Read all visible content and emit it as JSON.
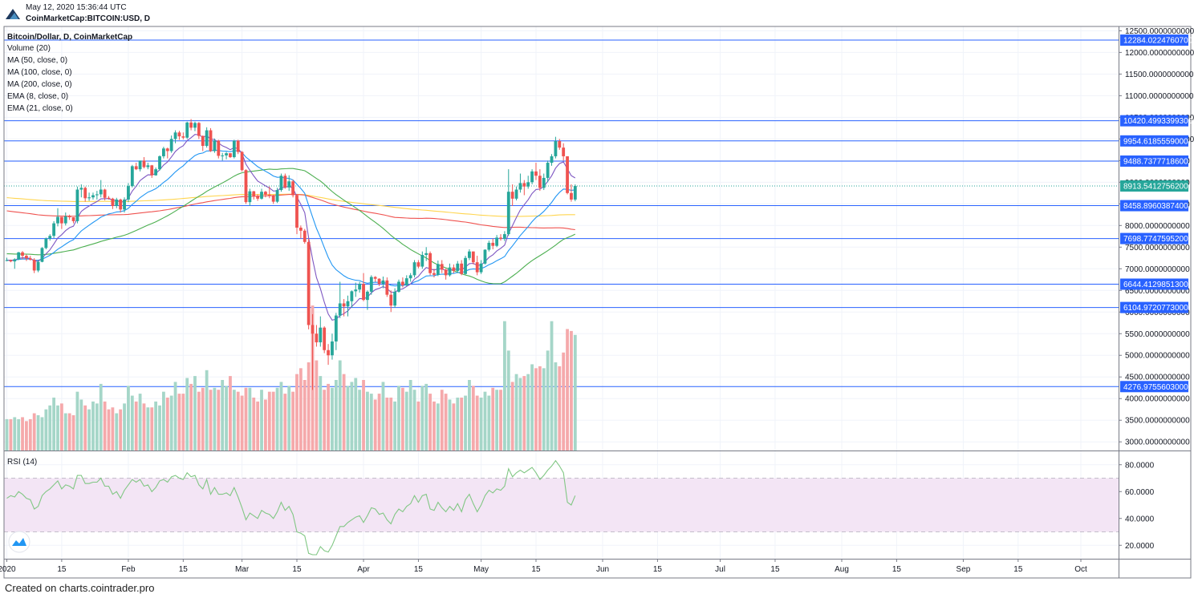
{
  "header": {
    "date": "May 12, 2020 15:36:44 UTC",
    "symbol": "CoinMarketCap:BITCOIN:USD, D"
  },
  "footer": {
    "text": "Created on charts.cointrader.pro"
  },
  "legend": {
    "title": "Bitcoin/Dollar, D, CoinMarketCap",
    "volume": "Volume (20)",
    "indicators": [
      "MA (50, close, 0)",
      "MA (100, close, 0)",
      "MA (200, close, 0)",
      "EMA (8, close, 0)",
      "EMA (21, close, 0)"
    ]
  },
  "rsi_label": "RSI (14)",
  "colors": {
    "up": "#26a69a",
    "down": "#ef5350",
    "up_vol": "#a5d6c8",
    "down_vol": "#f5a9ab",
    "level_line": "#2962ff",
    "last_price": "#26a69a",
    "ma50": "#4caf50",
    "ma100": "#ef5350",
    "ma200": "#ffd54f",
    "ema8": "#7e57c2",
    "ema21": "#2196f3",
    "rsi": "#81c784",
    "rsi_band": "#f3e5f5"
  },
  "chart_data": {
    "type": "candlestick",
    "x_ticks": [
      "2020",
      "15",
      "Feb",
      "15",
      "Mar",
      "15",
      "Apr",
      "15",
      "May",
      "15",
      "Jun",
      "15",
      "Jul",
      "15",
      "Aug",
      "15",
      "Sep",
      "15",
      "Oct"
    ],
    "x_tick_days": [
      0,
      14,
      31,
      45,
      60,
      74,
      91,
      105,
      121,
      135,
      152,
      166,
      182,
      196,
      213,
      227,
      244,
      258,
      274
    ],
    "price_axis": {
      "range": [
        2800,
        12600
      ],
      "ticks": [
        3000,
        3500,
        4000,
        4500,
        5000,
        5500,
        6000,
        6500,
        7000,
        7500,
        8000,
        8500,
        9000,
        9500,
        10000,
        10500,
        11000,
        11500,
        12000,
        12500
      ],
      "tick_format": "0000000000 decimals"
    },
    "level_lines": [
      "12284.0224760700",
      "10420.4993399300",
      "9954.6185559000",
      "9488.7377718600",
      "8458.8960387400",
      "7698.7747595200",
      "6644.4129851300",
      "6104.9720773000",
      "4276.9755603000"
    ],
    "last_price": "8913.5412756200",
    "candles": [
      [
        7195,
        7255,
        7175,
        7200
      ],
      [
        7200,
        7212,
        7150,
        7170
      ],
      [
        7170,
        7242,
        7000,
        7220
      ],
      [
        7220,
        7390,
        7200,
        7380
      ],
      [
        7380,
        7410,
        7220,
        7300
      ],
      [
        7300,
        7330,
        7180,
        7240
      ],
      [
        7240,
        7298,
        7190,
        7210
      ],
      [
        7210,
        7245,
        6900,
        6960
      ],
      [
        6960,
        7200,
        6920,
        7160
      ],
      [
        7160,
        7500,
        7150,
        7480
      ],
      [
        7480,
        7720,
        7450,
        7700
      ],
      [
        7700,
        7800,
        7650,
        7760
      ],
      [
        7760,
        8100,
        7710,
        8050
      ],
      [
        8050,
        8400,
        7980,
        8200
      ],
      [
        8200,
        8200,
        7920,
        8050
      ],
      [
        8050,
        8300,
        8000,
        8210
      ],
      [
        8210,
        8250,
        8130,
        8190
      ],
      [
        8190,
        8190,
        8050,
        8100
      ],
      [
        8100,
        8900,
        8050,
        8830
      ],
      [
        8830,
        8950,
        8650,
        8870
      ],
      [
        8870,
        8900,
        8550,
        8630
      ],
      [
        8630,
        8760,
        8570,
        8650
      ],
      [
        8650,
        8760,
        8600,
        8700
      ],
      [
        8700,
        8800,
        8600,
        8720
      ],
      [
        8720,
        9050,
        8650,
        8830
      ],
      [
        8830,
        8850,
        8580,
        8640
      ],
      [
        8640,
        8680,
        8600,
        8620
      ],
      [
        8620,
        8640,
        8380,
        8450
      ],
      [
        8450,
        8640,
        8400,
        8600
      ],
      [
        8600,
        8620,
        8300,
        8370
      ],
      [
        8370,
        8650,
        8300,
        8600
      ],
      [
        8600,
        8980,
        8540,
        8910
      ],
      [
        8910,
        9400,
        8880,
        9370
      ],
      [
        9370,
        9450,
        9280,
        9300
      ],
      [
        9300,
        9500,
        9250,
        9500
      ],
      [
        9500,
        9580,
        9320,
        9350
      ],
      [
        9350,
        9450,
        9300,
        9390
      ],
      [
        9390,
        9400,
        9100,
        9160
      ],
      [
        9160,
        9340,
        9150,
        9300
      ],
      [
        9300,
        9620,
        9270,
        9600
      ],
      [
        9600,
        9820,
        9550,
        9780
      ],
      [
        9780,
        9800,
        9550,
        9720
      ],
      [
        9720,
        10080,
        9680,
        10000
      ],
      [
        10000,
        10200,
        9900,
        10150
      ],
      [
        10150,
        10190,
        9980,
        10060
      ],
      [
        10060,
        10150,
        9990,
        10030
      ],
      [
        10030,
        10400,
        10000,
        10380
      ],
      [
        10380,
        10460,
        10200,
        10260
      ],
      [
        10260,
        10400,
        10180,
        10370
      ],
      [
        10370,
        10390,
        10000,
        10070
      ],
      [
        10070,
        10080,
        9720,
        9840
      ],
      [
        9840,
        10270,
        9800,
        10200
      ],
      [
        10200,
        10250,
        9700,
        9720
      ],
      [
        9720,
        10010,
        9680,
        9960
      ],
      [
        9960,
        9980,
        9550,
        9610
      ],
      [
        9610,
        9680,
        9500,
        9620
      ],
      [
        9620,
        9700,
        9530,
        9670
      ],
      [
        9670,
        9670,
        9560,
        9580
      ],
      [
        9580,
        9980,
        9550,
        9960
      ],
      [
        9960,
        9980,
        9650,
        9700
      ],
      [
        9700,
        9720,
        9250,
        9280
      ],
      [
        9280,
        9300,
        8500,
        8540
      ],
      [
        8540,
        8850,
        8450,
        8790
      ],
      [
        8790,
        8800,
        8600,
        8680
      ],
      [
        8680,
        8720,
        8570,
        8620
      ],
      [
        8620,
        8850,
        8600,
        8780
      ],
      [
        8780,
        8800,
        8650,
        8710
      ],
      [
        8710,
        8900,
        8630,
        8700
      ],
      [
        8700,
        8710,
        8500,
        8550
      ],
      [
        8550,
        8870,
        8520,
        8820
      ],
      [
        8820,
        9200,
        8780,
        9150
      ],
      [
        9150,
        9200,
        8850,
        8880
      ],
      [
        8880,
        9160,
        8800,
        9020
      ],
      [
        9020,
        9060,
        8650,
        8700
      ],
      [
        8700,
        8720,
        7800,
        7950
      ],
      [
        7950,
        8000,
        7700,
        7880
      ],
      [
        7880,
        7920,
        7580,
        7620
      ],
      [
        7620,
        7700,
        5600,
        5700
      ],
      [
        5700,
        5950,
        4200,
        5500
      ],
      [
        5500,
        5700,
        5200,
        5300
      ],
      [
        5300,
        5900,
        5200,
        5640
      ],
      [
        5640,
        5670,
        5050,
        5120
      ],
      [
        5120,
        5260,
        4780,
        5000
      ],
      [
        5000,
        5500,
        4900,
        5320
      ],
      [
        5320,
        5980,
        5120,
        5920
      ],
      [
        5920,
        6700,
        5860,
        6200
      ],
      [
        6200,
        6300,
        5900,
        6130
      ],
      [
        6130,
        6380,
        5900,
        6250
      ],
      [
        6250,
        6500,
        6100,
        6480
      ],
      [
        6480,
        6680,
        6350,
        6520
      ],
      [
        6520,
        6700,
        6450,
        6650
      ],
      [
        6650,
        6900,
        6250,
        6280
      ],
      [
        6280,
        6500,
        6050,
        6470
      ],
      [
        6470,
        6850,
        6400,
        6810
      ],
      [
        6810,
        6830,
        6700,
        6770
      ],
      [
        6770,
        6780,
        6600,
        6650
      ],
      [
        6650,
        6820,
        6550,
        6730
      ],
      [
        6730,
        6800,
        6350,
        6400
      ],
      [
        6400,
        6500,
        6000,
        6150
      ],
      [
        6150,
        6550,
        6100,
        6470
      ],
      [
        6470,
        6750,
        6450,
        6700
      ],
      [
        6700,
        6800,
        6570,
        6620
      ],
      [
        6620,
        6850,
        6600,
        6780
      ],
      [
        6780,
        6900,
        6700,
        6850
      ],
      [
        6850,
        7200,
        6800,
        7150
      ],
      [
        7150,
        7200,
        7010,
        7050
      ],
      [
        7050,
        7400,
        7000,
        7320
      ],
      [
        7320,
        7500,
        7180,
        7360
      ],
      [
        7360,
        7400,
        6850,
        6900
      ],
      [
        6900,
        7000,
        6800,
        6860
      ],
      [
        6860,
        7190,
        6830,
        7110
      ],
      [
        7110,
        7200,
        6900,
        6980
      ],
      [
        6980,
        7000,
        6750,
        6850
      ],
      [
        6850,
        7120,
        6820,
        7030
      ],
      [
        7030,
        7100,
        6900,
        6950
      ],
      [
        6950,
        7180,
        6900,
        7120
      ],
      [
        7120,
        7200,
        6850,
        6880
      ],
      [
        6880,
        7300,
        6860,
        7250
      ],
      [
        7250,
        7450,
        7200,
        7400
      ],
      [
        7400,
        7400,
        7100,
        7150
      ],
      [
        7150,
        7300,
        6850,
        6920
      ],
      [
        6920,
        7200,
        6880,
        7120
      ],
      [
        7120,
        7450,
        7100,
        7440
      ],
      [
        7440,
        7650,
        7400,
        7600
      ],
      [
        7600,
        7700,
        7450,
        7530
      ],
      [
        7530,
        7780,
        7500,
        7720
      ],
      [
        7720,
        7800,
        7650,
        7690
      ],
      [
        7690,
        7870,
        7640,
        7800
      ],
      [
        7800,
        9300,
        7760,
        8780
      ],
      [
        8780,
        8950,
        8450,
        8620
      ],
      [
        8620,
        8900,
        8580,
        8830
      ],
      [
        8830,
        9200,
        8760,
        8980
      ],
      [
        8980,
        9050,
        8700,
        8900
      ],
      [
        8900,
        9150,
        8850,
        9000
      ],
      [
        9000,
        9300,
        8950,
        9250
      ],
      [
        9250,
        9450,
        9050,
        9150
      ],
      [
        9150,
        9300,
        8800,
        8870
      ],
      [
        8870,
        9200,
        8820,
        9100
      ],
      [
        9100,
        9500,
        9000,
        9450
      ],
      [
        9450,
        9650,
        9380,
        9600
      ],
      [
        9600,
        10050,
        9550,
        9950
      ],
      [
        9950,
        10000,
        9750,
        9800
      ],
      [
        9800,
        9900,
        9500,
        9600
      ],
      [
        9600,
        9600,
        8720,
        8750
      ],
      [
        8750,
        8950,
        8550,
        8600
      ],
      [
        8600,
        8950,
        8560,
        8913
      ]
    ],
    "volume_directions_note": "volume bar color follows candle direction",
    "volumes": [
      1.6,
      1.6,
      1.7,
      1.6,
      1.7,
      1.5,
      1.6,
      1.9,
      1.8,
      1.7,
      2.1,
      2.3,
      2.7,
      2.3,
      2.4,
      1.9,
      1.9,
      1.8,
      3.0,
      2.6,
      2.3,
      2.1,
      2.5,
      2.4,
      3.4,
      2.5,
      2.1,
      2.2,
      1.9,
      2.1,
      2.4,
      3.3,
      2.8,
      2.5,
      2.9,
      2.4,
      2.2,
      2.2,
      2.5,
      2.3,
      3.0,
      2.7,
      2.8,
      3.5,
      2.9,
      2.9,
      3.7,
      3.4,
      3.8,
      3.0,
      3.2,
      4.1,
      3.1,
      3.2,
      3.1,
      3.6,
      3.3,
      3.8,
      3.1,
      3.0,
      2.8,
      3.2,
      3.2,
      2.7,
      2.5,
      3.1,
      2.6,
      3.0,
      3.0,
      3.2,
      3.5,
      2.9,
      3.3,
      3.0,
      3.9,
      4.2,
      3.6,
      4.5,
      7.4,
      4.6,
      3.8,
      3.1,
      3.4,
      3.2,
      3.6,
      4.6,
      3.9,
      3.3,
      3.5,
      3.7,
      3.1,
      3.6,
      3.0,
      2.9,
      2.6,
      2.9,
      3.5,
      2.7,
      2.7,
      2.5,
      3.3,
      3.2,
      3.0,
      3.6,
      3.1,
      2.5,
      3.3,
      3.4,
      2.9,
      2.5,
      2.4,
      3.1,
      2.9,
      2.6,
      2.4,
      2.7,
      2.7,
      2.8,
      3.6,
      3.3,
      2.8,
      2.7,
      3.0,
      2.8,
      3.2,
      3.1,
      3.1,
      6.6,
      5.1,
      3.5,
      3.9,
      3.7,
      3.8,
      3.9,
      4.4,
      4.2,
      4.3,
      4.2,
      5.1,
      6.6,
      4.5,
      4.3,
      5.0,
      6.2,
      6.1,
      5.9
    ],
    "volume_scale_note": "volumes in billions USD",
    "rsi": {
      "range": [
        10,
        90
      ],
      "ticks": [
        20,
        40,
        60,
        80
      ],
      "band": [
        30,
        70
      ],
      "values": [
        55,
        57,
        56,
        60,
        58,
        55,
        54,
        47,
        49,
        57,
        60,
        62,
        65,
        68,
        62,
        65,
        64,
        62,
        72,
        72,
        66,
        66,
        67,
        67,
        70,
        64,
        64,
        58,
        60,
        55,
        61,
        65,
        69,
        67,
        69,
        64,
        65,
        60,
        63,
        68,
        69,
        67,
        71,
        72,
        70,
        69,
        74,
        71,
        72,
        65,
        62,
        69,
        58,
        63,
        58,
        58,
        59,
        57,
        63,
        56,
        48,
        39,
        44,
        42,
        40,
        46,
        44,
        43,
        40,
        45,
        52,
        46,
        49,
        43,
        30,
        29,
        27,
        14,
        13,
        13,
        19,
        16,
        15,
        20,
        27,
        34,
        34,
        37,
        39,
        41,
        42,
        37,
        42,
        48,
        47,
        43,
        44,
        39,
        36,
        43,
        47,
        45,
        49,
        51,
        57,
        52,
        57,
        58,
        47,
        46,
        52,
        48,
        45,
        49,
        46,
        51,
        45,
        54,
        58,
        51,
        45,
        50,
        57,
        61,
        59,
        62,
        61,
        64,
        77,
        71,
        74,
        76,
        74,
        76,
        78,
        74,
        69,
        72,
        76,
        79,
        83,
        79,
        74,
        52,
        50,
        57
      ]
    }
  }
}
